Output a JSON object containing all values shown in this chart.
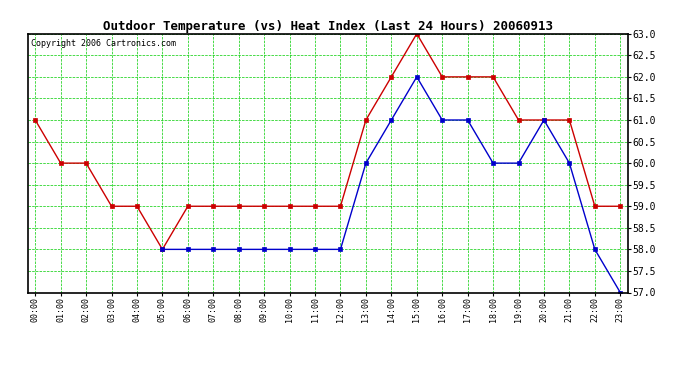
{
  "title": "Outdoor Temperature (vs) Heat Index (Last 24 Hours) 20060913",
  "copyright": "Copyright 2006 Cartronics.com",
  "x_labels": [
    "00:00",
    "01:00",
    "02:00",
    "03:00",
    "04:00",
    "05:00",
    "06:00",
    "07:00",
    "08:00",
    "09:00",
    "10:00",
    "11:00",
    "12:00",
    "13:00",
    "14:00",
    "15:00",
    "16:00",
    "17:00",
    "18:00",
    "19:00",
    "20:00",
    "21:00",
    "22:00",
    "23:00"
  ],
  "temp_red": [
    61.0,
    60.0,
    60.0,
    59.0,
    59.0,
    58.0,
    59.0,
    59.0,
    59.0,
    59.0,
    59.0,
    59.0,
    59.0,
    61.0,
    62.0,
    63.0,
    62.0,
    62.0,
    62.0,
    61.0,
    61.0,
    61.0,
    59.0,
    59.0
  ],
  "heat_blue": [
    null,
    null,
    null,
    null,
    null,
    58.0,
    58.0,
    58.0,
    58.0,
    58.0,
    58.0,
    58.0,
    58.0,
    60.0,
    61.0,
    62.0,
    61.0,
    61.0,
    60.0,
    60.0,
    61.0,
    60.0,
    58.0,
    57.0
  ],
  "ylim": [
    57.0,
    63.0
  ],
  "fig_bg": "#ffffff",
  "plot_bg": "#ffffff",
  "red_color": "#cc0000",
  "blue_color": "#0000cc",
  "grid_color": "#00cc00",
  "border_color": "#000000",
  "title_fontsize": 9,
  "copyright_fontsize": 6,
  "tick_fontsize": 6
}
